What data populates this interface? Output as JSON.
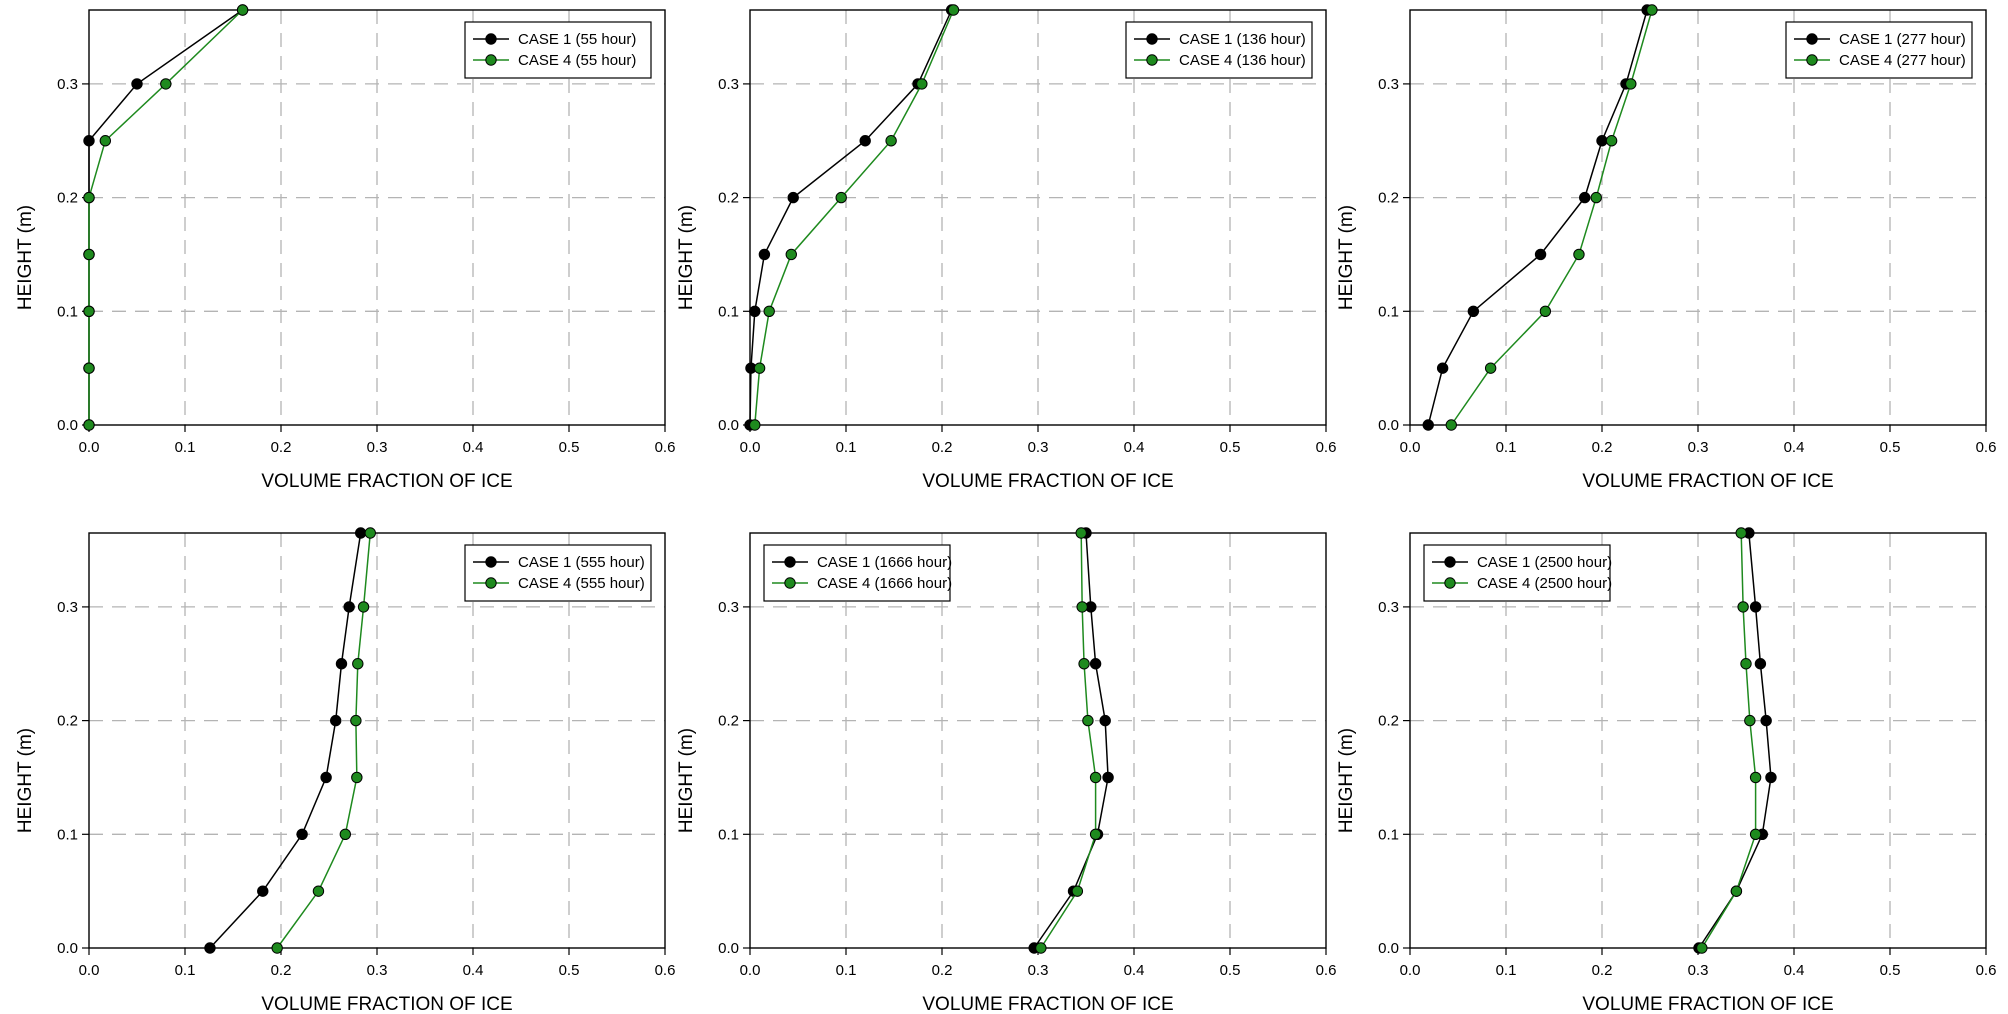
{
  "chart_data": [
    {
      "type": "line",
      "xlabel": "VOLUME FRACTION OF ICE",
      "ylabel": "HEIGHT (m)",
      "xlim": [
        0,
        0.6
      ],
      "ylim": [
        0,
        0.365
      ],
      "x_ticks": [
        "0.0",
        "0.1",
        "0.2",
        "0.3",
        "0.4",
        "0.5",
        "0.6"
      ],
      "y_ticks": [
        "0.0",
        "0.1",
        "0.2",
        "0.3"
      ],
      "grid": true,
      "legend_position": "top-right",
      "series": [
        {
          "name": "CASE 1 (55 hour)",
          "color": "#000000",
          "x": [
            0.0,
            0.0,
            0.0,
            0.0,
            0.0,
            0.0,
            0.05,
            0.16
          ],
          "y": [
            0.0,
            0.05,
            0.1,
            0.15,
            0.2,
            0.25,
            0.3,
            0.365
          ]
        },
        {
          "name": "CASE 4 (55 hour)",
          "color": "#1e8a1e",
          "x": [
            0.0,
            0.0,
            0.0,
            0.0,
            0.0,
            0.017,
            0.08,
            0.16
          ],
          "y": [
            0.0,
            0.05,
            0.1,
            0.15,
            0.2,
            0.25,
            0.3,
            0.365
          ]
        }
      ]
    },
    {
      "type": "line",
      "xlabel": "VOLUME FRACTION OF ICE",
      "ylabel": "HEIGHT (m)",
      "xlim": [
        0,
        0.6
      ],
      "ylim": [
        0,
        0.365
      ],
      "x_ticks": [
        "0.0",
        "0.1",
        "0.2",
        "0.3",
        "0.4",
        "0.5",
        "0.6"
      ],
      "y_ticks": [
        "0.0",
        "0.1",
        "0.2",
        "0.3"
      ],
      "grid": true,
      "legend_position": "top-right",
      "series": [
        {
          "name": "CASE 1 (136 hour)",
          "color": "#000000",
          "x": [
            0.0,
            0.001,
            0.005,
            0.015,
            0.045,
            0.12,
            0.175,
            0.21
          ],
          "y": [
            0.0,
            0.05,
            0.1,
            0.15,
            0.2,
            0.25,
            0.3,
            0.365
          ]
        },
        {
          "name": "CASE 4 (136 hour)",
          "color": "#1e8a1e",
          "x": [
            0.005,
            0.01,
            0.02,
            0.043,
            0.095,
            0.147,
            0.179,
            0.212
          ],
          "y": [
            0.0,
            0.05,
            0.1,
            0.15,
            0.2,
            0.25,
            0.3,
            0.365
          ]
        }
      ]
    },
    {
      "type": "line",
      "xlabel": "VOLUME FRACTION OF ICE",
      "ylabel": "HEIGHT (m)",
      "xlim": [
        0,
        0.6
      ],
      "ylim": [
        0,
        0.365
      ],
      "x_ticks": [
        "0.0",
        "0.1",
        "0.2",
        "0.3",
        "0.4",
        "0.5",
        "0.6"
      ],
      "y_ticks": [
        "0.0",
        "0.1",
        "0.2",
        "0.3"
      ],
      "grid": true,
      "legend_position": "top-right",
      "series": [
        {
          "name": "CASE 1 (277 hour)",
          "color": "#000000",
          "x": [
            0.019,
            0.034,
            0.066,
            0.136,
            0.182,
            0.2,
            0.225,
            0.247
          ],
          "y": [
            0.0,
            0.05,
            0.1,
            0.15,
            0.2,
            0.25,
            0.3,
            0.365
          ]
        },
        {
          "name": "CASE 4 (277 hour)",
          "color": "#1e8a1e",
          "x": [
            0.043,
            0.084,
            0.141,
            0.176,
            0.194,
            0.21,
            0.23,
            0.252
          ],
          "y": [
            0.0,
            0.05,
            0.1,
            0.15,
            0.2,
            0.25,
            0.3,
            0.365
          ]
        }
      ]
    },
    {
      "type": "line",
      "xlabel": "VOLUME FRACTION OF ICE",
      "ylabel": "HEIGHT (m)",
      "xlim": [
        0,
        0.6
      ],
      "ylim": [
        0,
        0.365
      ],
      "x_ticks": [
        "0.0",
        "0.1",
        "0.2",
        "0.3",
        "0.4",
        "0.5",
        "0.6"
      ],
      "y_ticks": [
        "0.0",
        "0.1",
        "0.2",
        "0.3"
      ],
      "grid": true,
      "legend_position": "top-right",
      "series": [
        {
          "name": "CASE 1 (555 hour)",
          "color": "#000000",
          "x": [
            0.126,
            0.181,
            0.222,
            0.247,
            0.257,
            0.263,
            0.271,
            0.283
          ],
          "y": [
            0.0,
            0.05,
            0.1,
            0.15,
            0.2,
            0.25,
            0.3,
            0.365
          ]
        },
        {
          "name": "CASE 4 (555 hour)",
          "color": "#1e8a1e",
          "x": [
            0.196,
            0.239,
            0.267,
            0.279,
            0.278,
            0.28,
            0.286,
            0.293
          ],
          "y": [
            0.0,
            0.05,
            0.1,
            0.15,
            0.2,
            0.25,
            0.3,
            0.365
          ]
        }
      ]
    },
    {
      "type": "line",
      "xlabel": "VOLUME FRACTION OF ICE",
      "ylabel": "HEIGHT (m)",
      "xlim": [
        0,
        0.6
      ],
      "ylim": [
        0,
        0.365
      ],
      "x_ticks": [
        "0.0",
        "0.1",
        "0.2",
        "0.3",
        "0.4",
        "0.5",
        "0.6"
      ],
      "y_ticks": [
        "0.0",
        "0.1",
        "0.2",
        "0.3"
      ],
      "grid": true,
      "legend_position": "top-left",
      "series": [
        {
          "name": "CASE 1 (1666 hour)",
          "color": "#000000",
          "x": [
            0.296,
            0.337,
            0.362,
            0.373,
            0.37,
            0.36,
            0.355,
            0.35
          ],
          "y": [
            0.0,
            0.05,
            0.1,
            0.15,
            0.2,
            0.25,
            0.3,
            0.365
          ]
        },
        {
          "name": "CASE 4 (1666 hour)",
          "color": "#1e8a1e",
          "x": [
            0.303,
            0.341,
            0.36,
            0.36,
            0.352,
            0.348,
            0.346,
            0.345
          ],
          "y": [
            0.0,
            0.05,
            0.1,
            0.15,
            0.2,
            0.25,
            0.3,
            0.365
          ]
        }
      ]
    },
    {
      "type": "line",
      "xlabel": "VOLUME FRACTION OF ICE",
      "ylabel": "HEIGHT (m)",
      "xlim": [
        0,
        0.6
      ],
      "ylim": [
        0,
        0.365
      ],
      "x_ticks": [
        "0.0",
        "0.1",
        "0.2",
        "0.3",
        "0.4",
        "0.5",
        "0.6"
      ],
      "y_ticks": [
        "0.0",
        "0.1",
        "0.2",
        "0.3"
      ],
      "grid": true,
      "legend_position": "top-left",
      "series": [
        {
          "name": "CASE 1 (2500 hour)",
          "color": "#000000",
          "x": [
            0.301,
            0.34,
            0.367,
            0.376,
            0.371,
            0.365,
            0.36,
            0.353
          ],
          "y": [
            0.0,
            0.05,
            0.1,
            0.15,
            0.2,
            0.25,
            0.3,
            0.365
          ]
        },
        {
          "name": "CASE 4 (2500 hour)",
          "color": "#1e8a1e",
          "x": [
            0.304,
            0.34,
            0.36,
            0.36,
            0.354,
            0.35,
            0.347,
            0.345
          ],
          "y": [
            0.0,
            0.05,
            0.1,
            0.15,
            0.2,
            0.25,
            0.3,
            0.365
          ]
        }
      ]
    }
  ]
}
